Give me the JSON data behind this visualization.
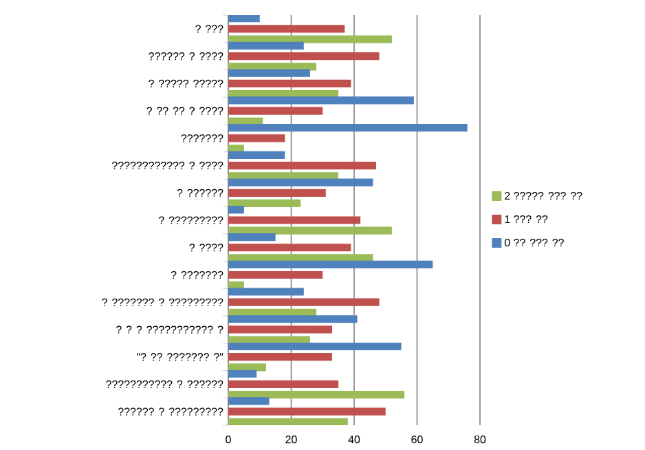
{
  "chart_data": {
    "type": "bar",
    "orientation": "horizontal",
    "categories": [
      "? ???",
      "?????? ? ????",
      "? ????? ?????",
      "? ?? ?? ? ????",
      "???????",
      "???????????? ? ????",
      "? ??????",
      "? ?????????",
      "? ????",
      "? ???????",
      "? ??????? ? ?????????",
      "? ? ? ??????????? ?",
      "\"? ?? ??????? ?\"",
      "??????????? ? ??????",
      "?????? ? ?????????"
    ],
    "series": [
      {
        "name": "2 ????? ??? ??",
        "color": "#9bbb59",
        "values": [
          52,
          28,
          35,
          11,
          5,
          35,
          23,
          52,
          46,
          5,
          28,
          26,
          12,
          56,
          38
        ]
      },
      {
        "name": "1 ??? ??",
        "color": "#c0504d",
        "values": [
          37,
          48,
          39,
          30,
          18,
          47,
          31,
          42,
          39,
          30,
          48,
          33,
          33,
          35,
          50
        ]
      },
      {
        "name": "0 ?? ??? ??",
        "color": "#4f81bd",
        "values": [
          10,
          24,
          26,
          59,
          76,
          18,
          46,
          5,
          15,
          65,
          24,
          41,
          55,
          9,
          13
        ]
      }
    ],
    "xlim": [
      0,
      80
    ],
    "xticks": [
      0,
      20,
      40,
      60,
      80
    ],
    "grid": "x",
    "legend": "right"
  }
}
